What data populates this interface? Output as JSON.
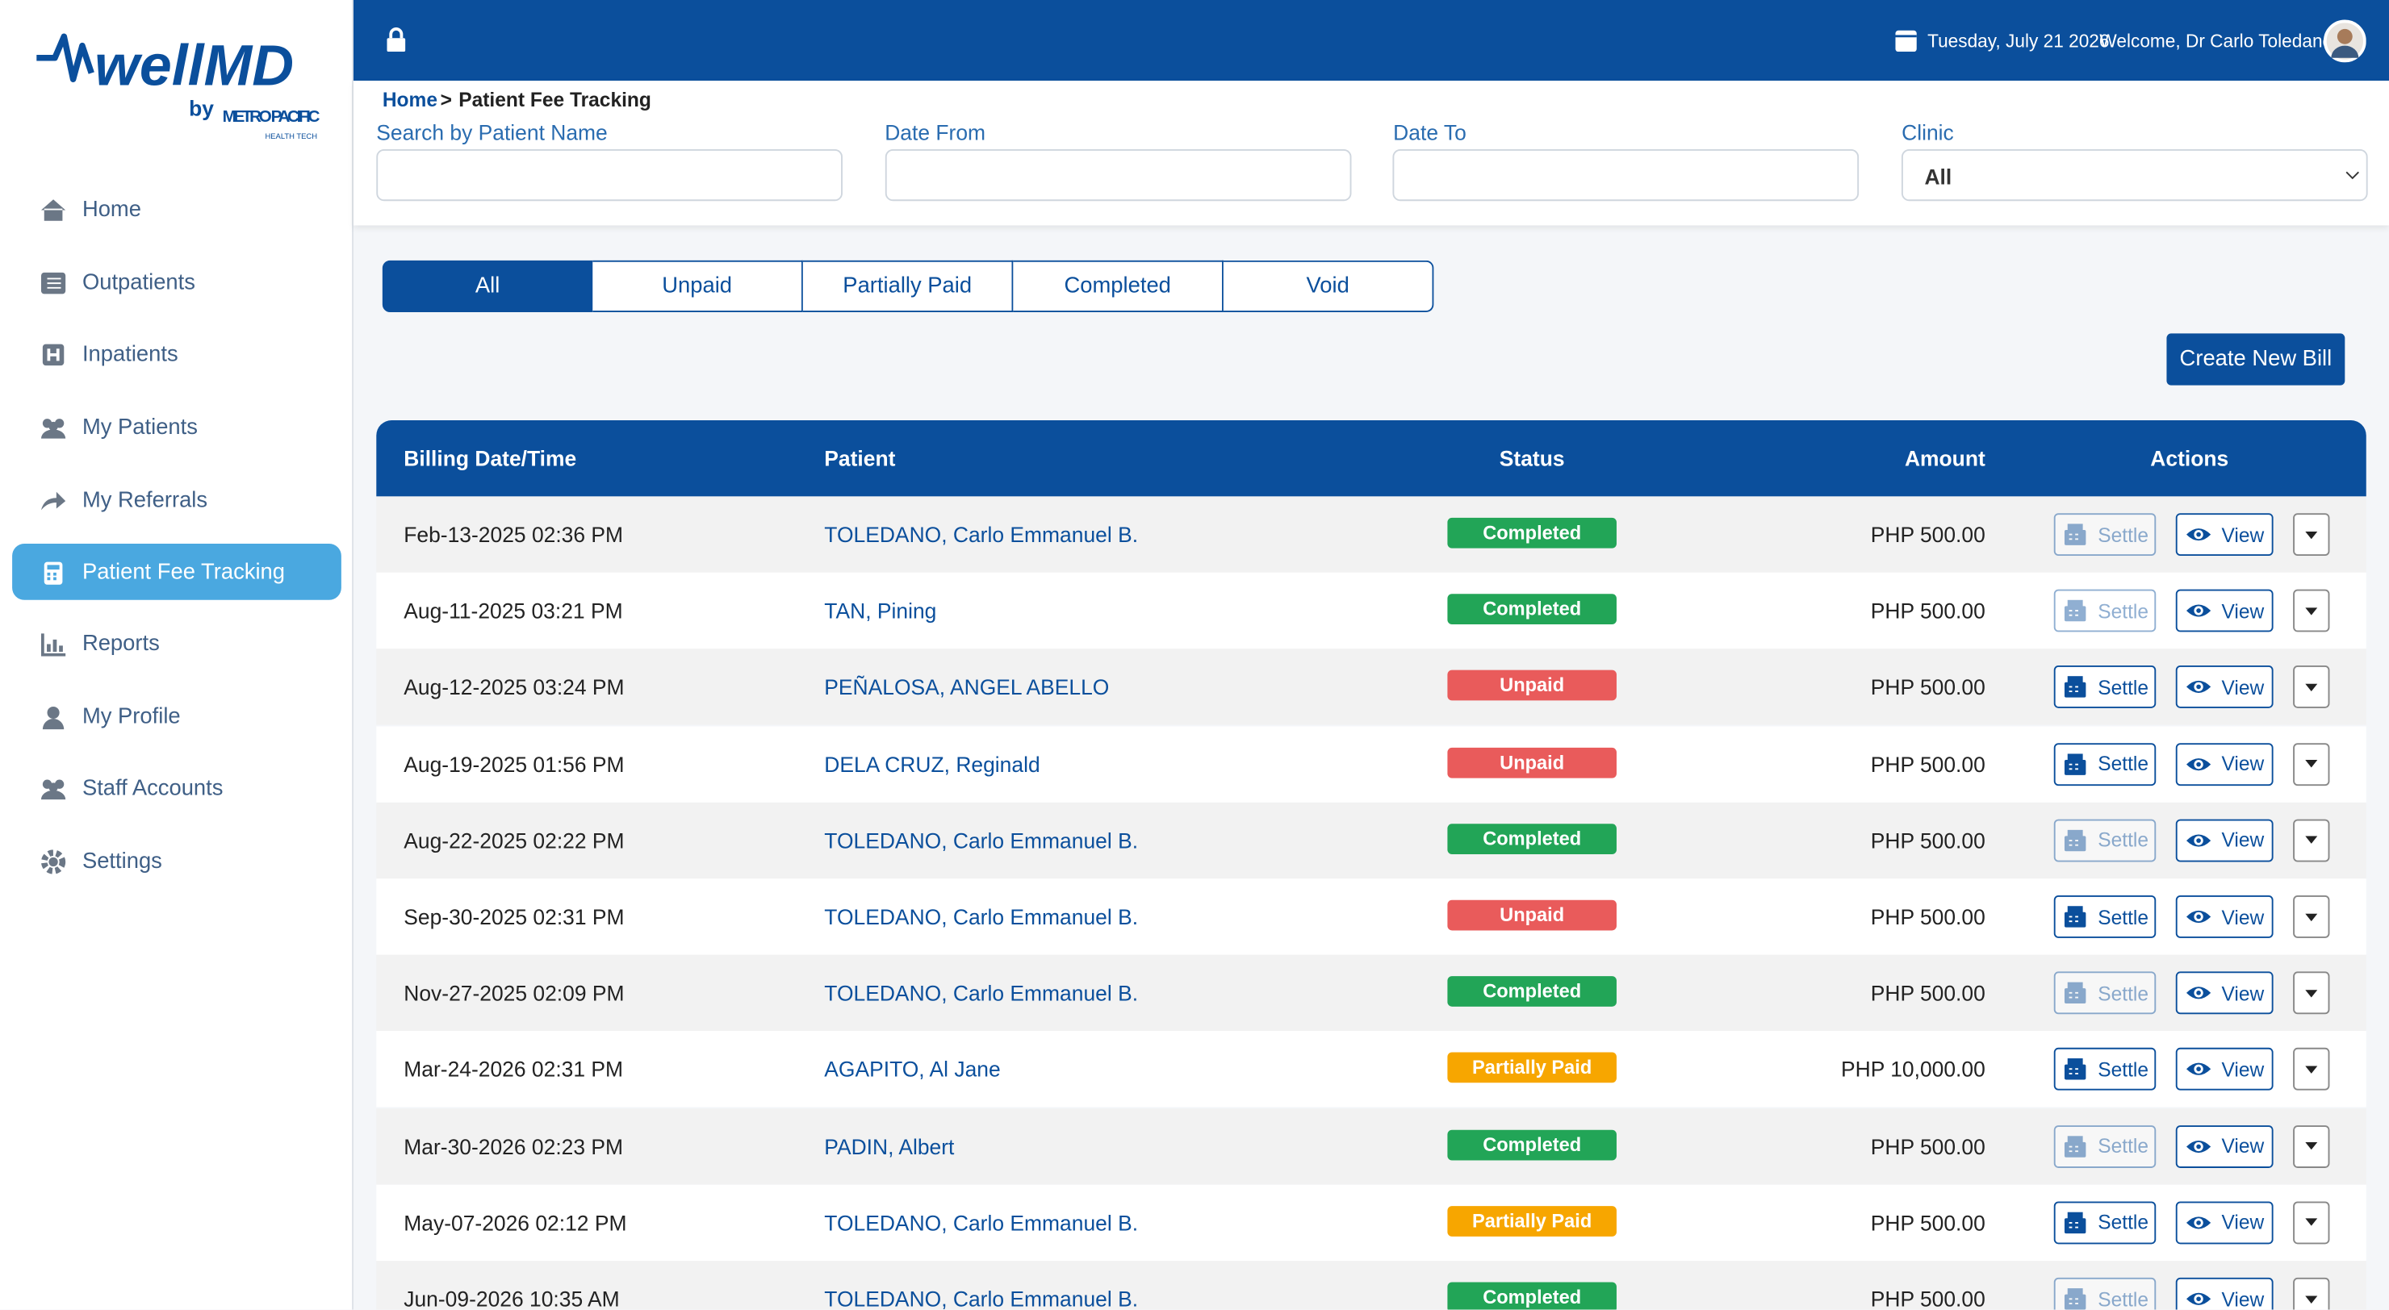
{
  "logo": {
    "brand": "wellMD",
    "by": "by",
    "company": "METRO PACIFIC",
    "tagline": "HEALTH TECH"
  },
  "header": {
    "date": "Tuesday, July 21 2026",
    "welcome": "Welcome, Dr Carlo Toledano"
  },
  "nav": [
    {
      "label": "Home",
      "active": false
    },
    {
      "label": "Outpatients",
      "active": false
    },
    {
      "label": "Inpatients",
      "active": false
    },
    {
      "label": "My Patients",
      "active": false
    },
    {
      "label": "My Referrals",
      "active": false
    },
    {
      "label": "Patient Fee Tracking",
      "active": true
    },
    {
      "label": "Reports",
      "active": false
    },
    {
      "label": "My Profile",
      "active": false
    },
    {
      "label": "Staff Accounts",
      "active": false
    },
    {
      "label": "Settings",
      "active": false
    }
  ],
  "breadcrumb": {
    "home": "Home",
    "separator": ">",
    "current": "Patient Fee Tracking"
  },
  "filters": [
    {
      "label": "Search by Patient Name",
      "value": ""
    },
    {
      "label": "Date From",
      "value": ""
    },
    {
      "label": "Date To",
      "value": ""
    },
    {
      "label": "Clinic",
      "value": "All"
    }
  ],
  "tabs": [
    {
      "label": "All",
      "active": true
    },
    {
      "label": "Unpaid",
      "active": false
    },
    {
      "label": "Partially Paid",
      "active": false
    },
    {
      "label": "Completed",
      "active": false
    },
    {
      "label": "Void",
      "active": false
    }
  ],
  "create_button": "Create New Bill",
  "table": {
    "columns": [
      "Billing Date/Time",
      "Patient",
      "Status",
      "Amount",
      "Actions"
    ],
    "actions": {
      "settle": "Settle",
      "view": "View"
    },
    "badge_colors": {
      "Completed": "#22a557",
      "Unpaid": "#e95b5b",
      "Partially Paid": "#f7a600"
    },
    "rows": [
      {
        "date": "Feb-13-2025 02:36 PM",
        "patient": "TOLEDANO, Carlo Emmanuel B.",
        "status": "Completed",
        "amount": "PHP 500.00",
        "settle_enabled": false
      },
      {
        "date": "Aug-11-2025 03:21 PM",
        "patient": "TAN, Pining",
        "status": "Completed",
        "amount": "PHP 500.00",
        "settle_enabled": false
      },
      {
        "date": "Aug-12-2025 03:24 PM",
        "patient": "PEÑALOSA, ANGEL ABELLO",
        "status": "Unpaid",
        "amount": "PHP 500.00",
        "settle_enabled": true
      },
      {
        "date": "Aug-19-2025 01:56 PM",
        "patient": "DELA CRUZ, Reginald",
        "status": "Unpaid",
        "amount": "PHP 500.00",
        "settle_enabled": true
      },
      {
        "date": "Aug-22-2025 02:22 PM",
        "patient": "TOLEDANO, Carlo Emmanuel B.",
        "status": "Completed",
        "amount": "PHP 500.00",
        "settle_enabled": false
      },
      {
        "date": "Sep-30-2025 02:31 PM",
        "patient": "TOLEDANO, Carlo Emmanuel B.",
        "status": "Unpaid",
        "amount": "PHP 500.00",
        "settle_enabled": true
      },
      {
        "date": "Nov-27-2025 02:09 PM",
        "patient": "TOLEDANO, Carlo Emmanuel B.",
        "status": "Completed",
        "amount": "PHP 500.00",
        "settle_enabled": false
      },
      {
        "date": "Mar-24-2026 02:31 PM",
        "patient": "AGAPITO, Al Jane",
        "status": "Partially Paid",
        "amount": "PHP 10,000.00",
        "settle_enabled": true
      },
      {
        "date": "Mar-30-2026 02:23 PM",
        "patient": "PADIN, Albert",
        "status": "Completed",
        "amount": "PHP 500.00",
        "settle_enabled": false
      },
      {
        "date": "May-07-2026 02:12 PM",
        "patient": "TOLEDANO, Carlo Emmanuel B.",
        "status": "Partially Paid",
        "amount": "PHP 500.00",
        "settle_enabled": true
      },
      {
        "date": "Jun-09-2026 10:35 AM",
        "patient": "TOLEDANO, Carlo Emmanuel B.",
        "status": "Completed",
        "amount": "PHP 500.00",
        "settle_enabled": false
      }
    ]
  }
}
